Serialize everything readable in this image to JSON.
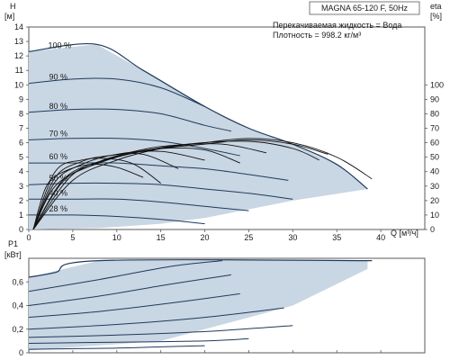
{
  "chart_data": [
    {
      "type": "line",
      "title": "MAGNA 65-120 F, 50Hz",
      "annotations": [
        "Перекачиваемая жидкость = Вода",
        "Плотность = 998.2 кг/м³"
      ],
      "xlabel": "Q [м³/ч]",
      "ylabel_left": [
        "H",
        "[м]"
      ],
      "ylabel_right": [
        "eta",
        "[%]"
      ],
      "xlim": [
        0,
        45
      ],
      "ylim": [
        0,
        14
      ],
      "y2lim": [
        0,
        140
      ],
      "x_ticks": [
        "0",
        "5",
        "10",
        "15",
        "20",
        "25",
        "30",
        "35",
        "40"
      ],
      "y_ticks": [
        "0",
        "1",
        "2",
        "3",
        "4",
        "5",
        "6",
        "7",
        "8",
        "9",
        "10",
        "11",
        "12",
        "13",
        "14"
      ],
      "y2_ticks": [
        "0",
        "10",
        "20",
        "30",
        "40",
        "50",
        "60",
        "70",
        "80",
        "90",
        "100"
      ],
      "operating_area": [
        [
          0,
          12.3
        ],
        [
          7.7,
          12.8
        ],
        [
          13,
          11
        ],
        [
          20,
          8.5
        ],
        [
          25,
          7
        ],
        [
          30,
          5.9
        ],
        [
          35,
          4.5
        ],
        [
          38.5,
          2.8
        ],
        [
          30,
          2
        ],
        [
          25,
          1.4
        ],
        [
          20,
          0.8
        ],
        [
          15,
          0.4
        ],
        [
          8,
          0.1
        ],
        [
          0,
          0
        ]
      ],
      "series": [
        {
          "name": "100 %",
          "values": [
            [
              0,
              12.3
            ],
            [
              7.7,
              12.8
            ],
            [
              13,
              11
            ],
            [
              20,
              8.5
            ],
            [
              25,
              7
            ],
            [
              30,
              5.9
            ],
            [
              35,
              4.5
            ],
            [
              38.5,
              2.8
            ]
          ]
        },
        {
          "name": "90 %",
          "values": [
            [
              0,
              10.1
            ],
            [
              5,
              10.4
            ],
            [
              10,
              10.4
            ],
            [
              15,
              9.8
            ],
            [
              20,
              8.5
            ]
          ]
        },
        {
          "name": "80 %",
          "values": [
            [
              0,
              8.1
            ],
            [
              5,
              8.3
            ],
            [
              10,
              8.3
            ],
            [
              15,
              8
            ],
            [
              20,
              7.2
            ],
            [
              23,
              6.8
            ]
          ]
        },
        {
          "name": "70 %",
          "values": [
            [
              0,
              6.2
            ],
            [
              5,
              6.3
            ],
            [
              10,
              6.3
            ],
            [
              15,
              6.1
            ],
            [
              20,
              5.6
            ],
            [
              24,
              5.1
            ]
          ]
        },
        {
          "name": "60 %",
          "values": [
            [
              0,
              4.6
            ],
            [
              5,
              4.6
            ],
            [
              10,
              4.6
            ],
            [
              15,
              4.4
            ],
            [
              20,
              4.2
            ],
            [
              25,
              3.8
            ],
            [
              29.5,
              3.4
            ]
          ]
        },
        {
          "name": "50 %",
          "values": [
            [
              0,
              3.1
            ],
            [
              5,
              3.2
            ],
            [
              10,
              3.2
            ],
            [
              15,
              3.1
            ],
            [
              20,
              2.8
            ],
            [
              25,
              2.5
            ],
            [
              30,
              2.1
            ]
          ]
        },
        {
          "name": "40 %",
          "values": [
            [
              0,
              2.1
            ],
            [
              5,
              2.1
            ],
            [
              10,
              2.1
            ],
            [
              15,
              1.9
            ],
            [
              20,
              1.6
            ],
            [
              25,
              1.3
            ]
          ]
        },
        {
          "name": "28 %",
          "values": [
            [
              0,
              1
            ],
            [
              5,
              1
            ],
            [
              10,
              0.9
            ],
            [
              15,
              0.7
            ],
            [
              20,
              0.4
            ]
          ]
        }
      ],
      "eta_curves": [
        {
          "values": [
            [
              0.5,
              0
            ],
            [
              5,
              34
            ],
            [
              10,
              48
            ],
            [
              15,
              56
            ],
            [
              20,
              60
            ],
            [
              25,
              63
            ],
            [
              30,
              60
            ],
            [
              35,
              50
            ],
            [
              39,
              35
            ]
          ]
        },
        {
          "values": [
            [
              0.5,
              0
            ],
            [
              5,
              38
            ],
            [
              10,
              50
            ],
            [
              15,
              56
            ],
            [
              20,
              59
            ],
            [
              25,
              62
            ],
            [
              30,
              59
            ],
            [
              34,
              52
            ]
          ]
        },
        {
          "values": [
            [
              0.5,
              0
            ],
            [
              4,
              34
            ],
            [
              8,
              46
            ],
            [
              12,
              53
            ],
            [
              18,
              59
            ],
            [
              25,
              61
            ],
            [
              30,
              56
            ],
            [
              33,
              48
            ]
          ]
        },
        {
          "values": [
            [
              0.5,
              0
            ],
            [
              4,
              35
            ],
            [
              8,
              47
            ],
            [
              12,
              54
            ],
            [
              16,
              58
            ],
            [
              22,
              59
            ],
            [
              27,
              53
            ]
          ]
        },
        {
          "values": [
            [
              0.5,
              0
            ],
            [
              3,
              30
            ],
            [
              7,
              44
            ],
            [
              11,
              52
            ],
            [
              15,
              56
            ],
            [
              20,
              55
            ],
            [
              24,
              46
            ]
          ]
        },
        {
          "values": [
            [
              0.5,
              0
            ],
            [
              3,
              33
            ],
            [
              6,
              45
            ],
            [
              10,
              52
            ],
            [
              15,
              54
            ],
            [
              20,
              48
            ]
          ]
        },
        {
          "values": [
            [
              0.5,
              0
            ],
            [
              3,
              36
            ],
            [
              6,
              47
            ],
            [
              9,
              51
            ],
            [
              13,
              52
            ],
            [
              17,
              42
            ]
          ]
        },
        {
          "values": [
            [
              0.5,
              0
            ],
            [
              3,
              40
            ],
            [
              6,
              48
            ],
            [
              9,
              49
            ],
            [
              12,
              45
            ],
            [
              15,
              32
            ]
          ]
        },
        {
          "values": [
            [
              0.5,
              0
            ],
            [
              2,
              30
            ],
            [
              4,
              40
            ],
            [
              7,
              45
            ],
            [
              10,
              43
            ],
            [
              13,
              36
            ]
          ]
        }
      ]
    },
    {
      "type": "line",
      "ylabel": [
        "P1",
        "[кВт]"
      ],
      "xlim": [
        0,
        45
      ],
      "ylim": [
        0,
        0.8
      ],
      "y_ticks": [
        "0",
        "0,2",
        "0,4",
        "0,6"
      ],
      "operating_area": [
        [
          0,
          0.64
        ],
        [
          8,
          0.78
        ],
        [
          38.5,
          0.78
        ],
        [
          38.5,
          0.71
        ],
        [
          30,
          0.4
        ],
        [
          20,
          0.2
        ],
        [
          15,
          0.1
        ],
        [
          0,
          0.02
        ]
      ],
      "series": [
        {
          "name": "100 %",
          "values": [
            [
              0,
              0.64
            ],
            [
              3,
              0.68
            ],
            [
              8,
              0.78
            ],
            [
              39,
              0.78
            ]
          ]
        },
        {
          "name": "90 %",
          "values": [
            [
              0,
              0.52
            ],
            [
              8,
              0.62
            ],
            [
              16,
              0.73
            ],
            [
              22,
              0.78
            ]
          ]
        },
        {
          "name": "80 %",
          "values": [
            [
              0,
              0.4
            ],
            [
              8,
              0.48
            ],
            [
              16,
              0.58
            ],
            [
              23,
              0.66
            ]
          ]
        },
        {
          "name": "70 %",
          "values": [
            [
              0,
              0.3
            ],
            [
              8,
              0.35
            ],
            [
              16,
              0.42
            ],
            [
              24,
              0.5
            ]
          ]
        },
        {
          "name": "60 %",
          "values": [
            [
              0,
              0.2
            ],
            [
              10,
              0.24
            ],
            [
              20,
              0.3
            ],
            [
              29,
              0.38
            ]
          ]
        },
        {
          "name": "50 %",
          "values": [
            [
              0,
              0.13
            ],
            [
              10,
              0.15
            ],
            [
              20,
              0.18
            ],
            [
              30,
              0.23
            ]
          ]
        },
        {
          "name": "40 %",
          "values": [
            [
              0,
              0.08
            ],
            [
              10,
              0.09
            ],
            [
              20,
              0.1
            ],
            [
              25,
              0.12
            ]
          ]
        },
        {
          "name": "28 %",
          "values": [
            [
              0,
              0.03
            ],
            [
              10,
              0.04
            ],
            [
              15,
              0.05
            ],
            [
              20,
              0.06
            ]
          ]
        }
      ]
    }
  ],
  "colors": {
    "area": "#c9d6e3",
    "curve": "#1f3a5c",
    "eta": "#111111",
    "grid": "#5a5a5a",
    "text": "#1a1a1a"
  }
}
